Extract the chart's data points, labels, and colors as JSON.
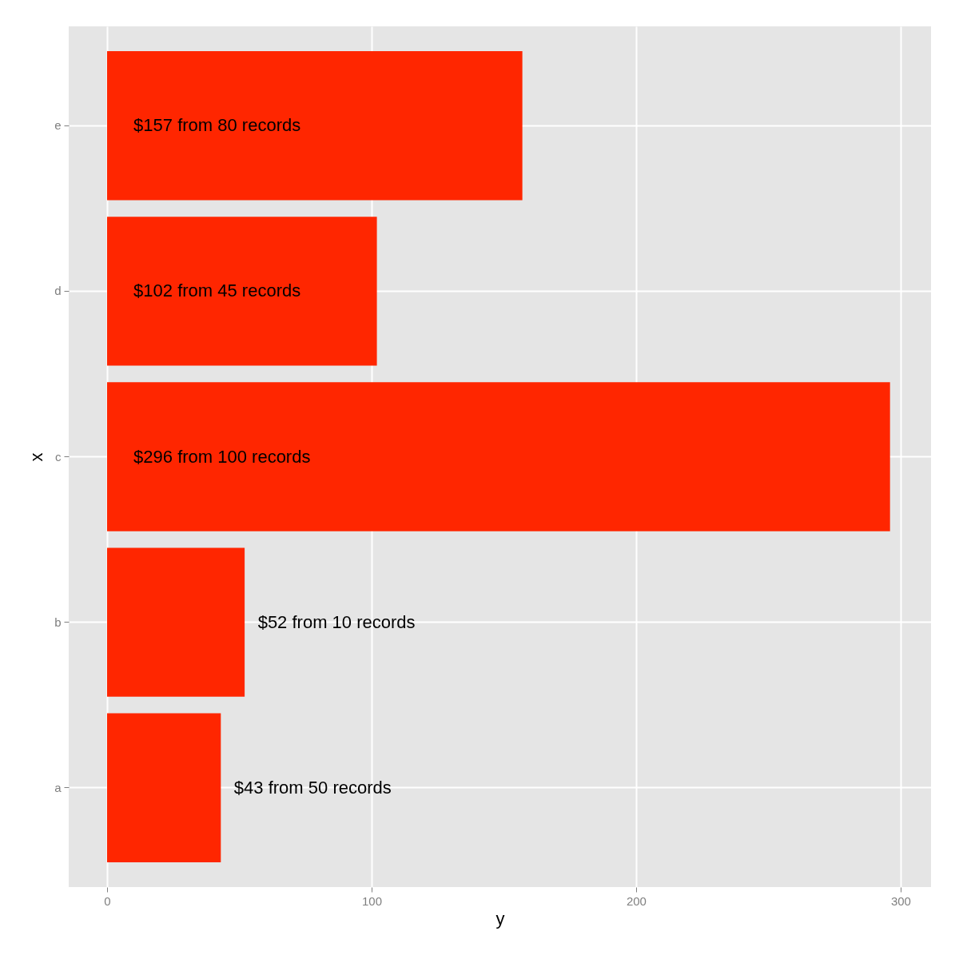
{
  "chart_data": {
    "type": "bar",
    "orientation": "horizontal",
    "xlabel": "y",
    "ylabel": "x",
    "categories": [
      "e",
      "d",
      "c",
      "b",
      "a"
    ],
    "values": [
      157,
      102,
      296,
      52,
      43
    ],
    "value_labels": [
      "$157 from 80 records",
      "$102 from 45 records",
      "$296 from 100 records",
      "$52 from 10 records",
      "$43 from 50 records"
    ],
    "color": "#ff2600",
    "xlim": [
      -14.5,
      311.5
    ],
    "xticks": [
      0,
      100,
      200,
      300
    ],
    "grid": true
  }
}
